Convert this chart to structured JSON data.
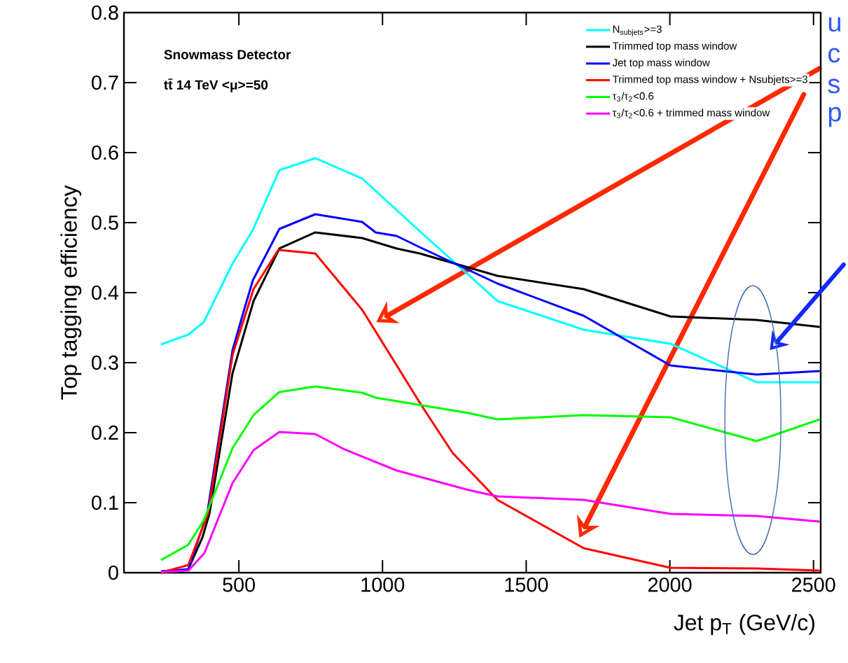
{
  "chart_data": {
    "type": "line",
    "xlabel": "Jet p$_{T}$ (GeV/c)",
    "ylabel": "Top tagging efficiency",
    "annotations": [
      "**Snowmass Detector**",
      "**tt̄ 14 TeV <μ>=50**",
      "u",
      "c",
      "s",
      "p"
    ],
    "xlim": [
      100,
      2525
    ],
    "ylim": [
      0,
      0.8
    ],
    "xticks": [
      500,
      1000,
      1500,
      2000,
      2500
    ],
    "yticks": [
      0,
      0.1,
      0.2,
      0.3,
      0.4,
      0.5,
      0.6,
      0.7,
      0.8
    ],
    "legend": "top right",
    "line_style": "solid",
    "series": [
      {
        "name": "N$_{subjets}$>=3",
        "color": "#00ffff",
        "x": [
          229,
          324,
          378,
          476,
          549,
          641,
          766,
          929,
          1129,
          1400,
          1700,
          2002,
          2302,
          2522
        ],
        "values": [
          0.326,
          0.34,
          0.358,
          0.44,
          0.49,
          0.575,
          0.592,
          0.563,
          0.488,
          0.388,
          0.347,
          0.327,
          0.272,
          0.272
        ]
      },
      {
        "name": "Trimmed top mass window",
        "color": "#000000",
        "x": [
          229,
          324,
          373,
          398,
          478,
          551,
          641,
          766,
          929,
          1049,
          1129,
          1400,
          1700,
          2002,
          2302,
          2522
        ],
        "values": [
          0.0,
          0.005,
          0.05,
          0.085,
          0.285,
          0.388,
          0.463,
          0.486,
          0.478,
          0.463,
          0.456,
          0.424,
          0.405,
          0.366,
          0.361,
          0.351
        ]
      },
      {
        "name": "Jet top mass window",
        "color": "#0000ff",
        "x": [
          229,
          324,
          390,
          478,
          520,
          549,
          641,
          766,
          929,
          976,
          1049,
          1129,
          1400,
          1700,
          2002,
          2302,
          2522
        ],
        "values": [
          0.002,
          0.005,
          0.085,
          0.318,
          0.378,
          0.418,
          0.491,
          0.512,
          0.501,
          0.486,
          0.481,
          0.465,
          0.413,
          0.367,
          0.296,
          0.283,
          0.288
        ]
      },
      {
        "name": "Trimmed top mass window + Nsubjets>=3",
        "color": "#ff0000",
        "x": [
          229,
          324,
          393,
          478,
          551,
          637,
          766,
          930,
          1137,
          1244,
          1400,
          1700,
          2002,
          2302,
          2522
        ],
        "values": [
          0.0,
          0.011,
          0.085,
          0.311,
          0.405,
          0.461,
          0.456,
          0.375,
          0.238,
          0.171,
          0.104,
          0.035,
          0.007,
          0.006,
          0.003
        ]
      },
      {
        "name": "τ$_{3}$/τ$_{2}$<0.6",
        "color": "#00ff00",
        "x": [
          229,
          324,
          378,
          478,
          551,
          641,
          766,
          929,
          976,
          1300,
          1400,
          1700,
          2002,
          2302,
          2522
        ],
        "values": [
          0.018,
          0.04,
          0.075,
          0.178,
          0.225,
          0.258,
          0.266,
          0.257,
          0.25,
          0.228,
          0.219,
          0.225,
          0.222,
          0.188,
          0.219
        ]
      },
      {
        "name": "τ$_{3}$/τ$_{2}$<0.6 + trimmed mass window",
        "color": "#ff00ff",
        "x": [
          229,
          324,
          380,
          478,
          551,
          641,
          766,
          868,
          1049,
          1300,
          1400,
          1700,
          2002,
          2302,
          2522
        ],
        "values": [
          0.001,
          0.003,
          0.028,
          0.128,
          0.175,
          0.201,
          0.198,
          0.176,
          0.146,
          0.118,
          0.109,
          0.104,
          0.084,
          0.081,
          0.073
        ]
      }
    ]
  }
}
